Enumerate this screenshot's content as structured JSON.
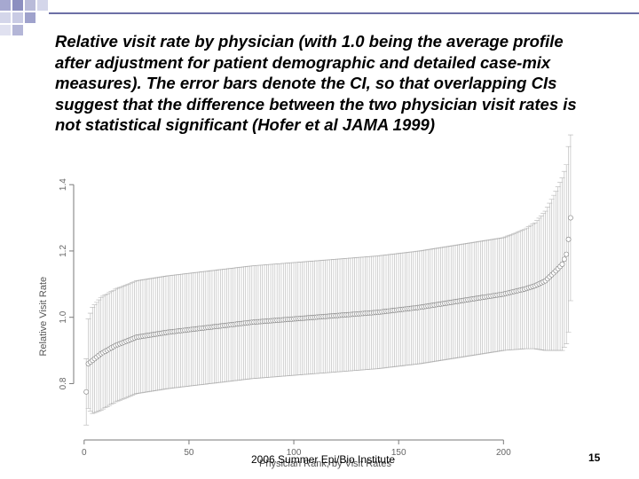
{
  "slide": {
    "caption": "Relative visit rate by physician (with 1.0 being the average profile after adjustment for patient demographic and detailed case-mix measures). The error bars denote the CI, so that overlapping CIs suggest that the difference between the two physician visit rates is not statistical significant (Hofer et al JAMA 1999)",
    "footer": "2006 Summer Epi/Bio Institute",
    "page_number": "15",
    "accent_color": "#6c6fa6",
    "deco_color": "#8c8fc0"
  },
  "chart_data": {
    "type": "scatter",
    "title": "",
    "xlabel": "Physician Rank, by Visit Rates",
    "ylabel": "Relative Visit Rate",
    "xlim": [
      -5,
      235
    ],
    "ylim": [
      0.63,
      1.47
    ],
    "x_ticks": [
      0,
      50,
      100,
      150,
      200
    ],
    "y_ticks": [
      0.8,
      1.0,
      1.2,
      1.4
    ],
    "x_tick_labels": [
      "0",
      "50",
      "100",
      "150",
      "200"
    ],
    "y_tick_labels": [
      "0.8",
      "1.0",
      "1.2",
      "1.4"
    ],
    "n_points": 232,
    "series": [
      {
        "marker": "open-circle",
        "error_bars": "ci",
        "rank_anchors": [
          1,
          2,
          4,
          8,
          15,
          25,
          40,
          60,
          80,
          100,
          120,
          140,
          160,
          180,
          200,
          210,
          215,
          220,
          225,
          228,
          230,
          231,
          232
        ],
        "value_anchors": [
          0.775,
          0.86,
          0.87,
          0.89,
          0.915,
          0.94,
          0.955,
          0.97,
          0.985,
          0.995,
          1.005,
          1.015,
          1.03,
          1.05,
          1.07,
          1.085,
          1.095,
          1.11,
          1.14,
          1.16,
          1.19,
          1.235,
          1.3
        ],
        "ci_half_width_anchors": [
          0.1,
          0.135,
          0.16,
          0.17,
          0.17,
          0.17,
          0.17,
          0.17,
          0.17,
          0.17,
          0.17,
          0.17,
          0.17,
          0.17,
          0.17,
          0.18,
          0.19,
          0.21,
          0.24,
          0.26,
          0.27,
          0.28,
          0.25
        ]
      }
    ],
    "grid": false,
    "legend": "none",
    "colors": {
      "errorbar": "#b4b4b4",
      "marker": "#8a8a8a",
      "axis": "#7a7a7a",
      "tick_label": "#666666"
    }
  }
}
